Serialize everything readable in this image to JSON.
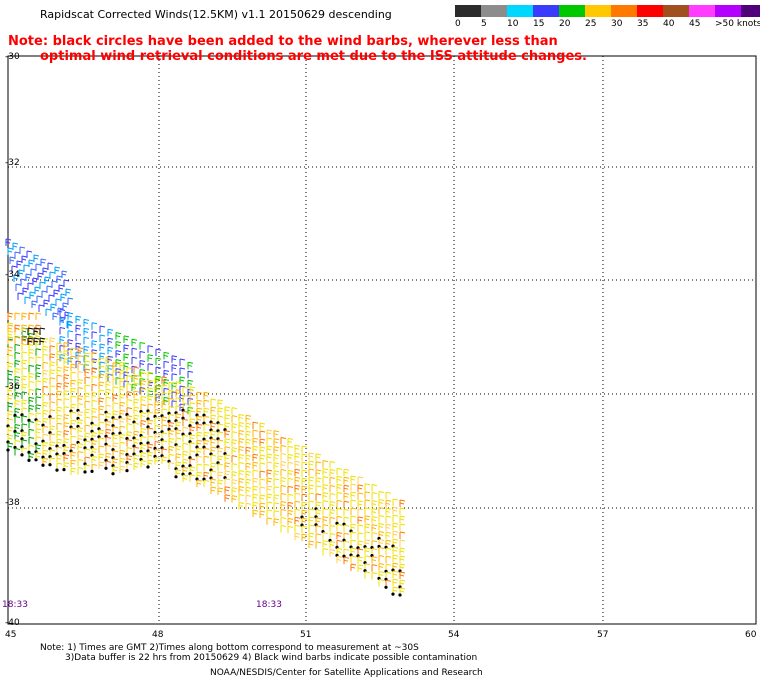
{
  "title": "Rapidscat Corrected Winds(12.5KM) v1.1 20150629 descending",
  "note": {
    "line1": "Note: black circles have been added to the wind barbs, wherever less than",
    "line2": "optimal wind retrieval conditions are met due to the ISS attitude changes."
  },
  "legend": {
    "colors": [
      "#2b2b2b",
      "#8c8c8c",
      "#00d7ff",
      "#00a0ff",
      "#3b3bff",
      "#00c800",
      "#f0f000",
      "#ffb400",
      "#ff7800",
      "#ff0000",
      "#b40000",
      "#a0501e",
      "#ff3cff",
      "#b400ff",
      "#500078",
      "#c0c0ff"
    ],
    "labels": [
      "0",
      "5",
      "10",
      "15",
      "20",
      "25",
      "30",
      "35",
      "40",
      "45",
      ">50 knots"
    ]
  },
  "axes": {
    "lat_labels": [
      "-30",
      "-32",
      "-34",
      "-36",
      "-38",
      "-40"
    ],
    "lon_labels": [
      "45",
      "48",
      "51",
      "54",
      "57",
      "60"
    ]
  },
  "times": [
    "18:33",
    "18:33"
  ],
  "footer": {
    "line1": "Note: 1) Times are GMT 2)Times along bottom correspond to measurement at ~30S",
    "line2": "3)Data buffer is 22 hrs from 20150629 4) Black wind barbs indicate possible contamination",
    "line3": "NOAA/NESDIS/Center for Satellite Applications and Research"
  }
}
